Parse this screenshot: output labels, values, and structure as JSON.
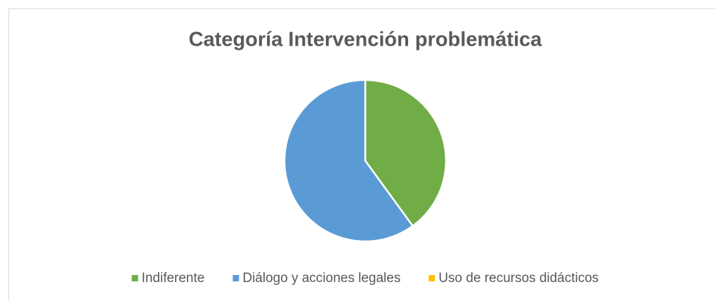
{
  "chart_data": {
    "type": "pie",
    "title": "Categoría Intervención problemática",
    "categories": [
      "Indiferente",
      "Diálogo y acciones legales",
      "Uso de recursos didácticos"
    ],
    "values": [
      40,
      60,
      0
    ],
    "colors": [
      "#70ad47",
      "#5b9bd5",
      "#ffc000"
    ],
    "legend": "bottom"
  }
}
